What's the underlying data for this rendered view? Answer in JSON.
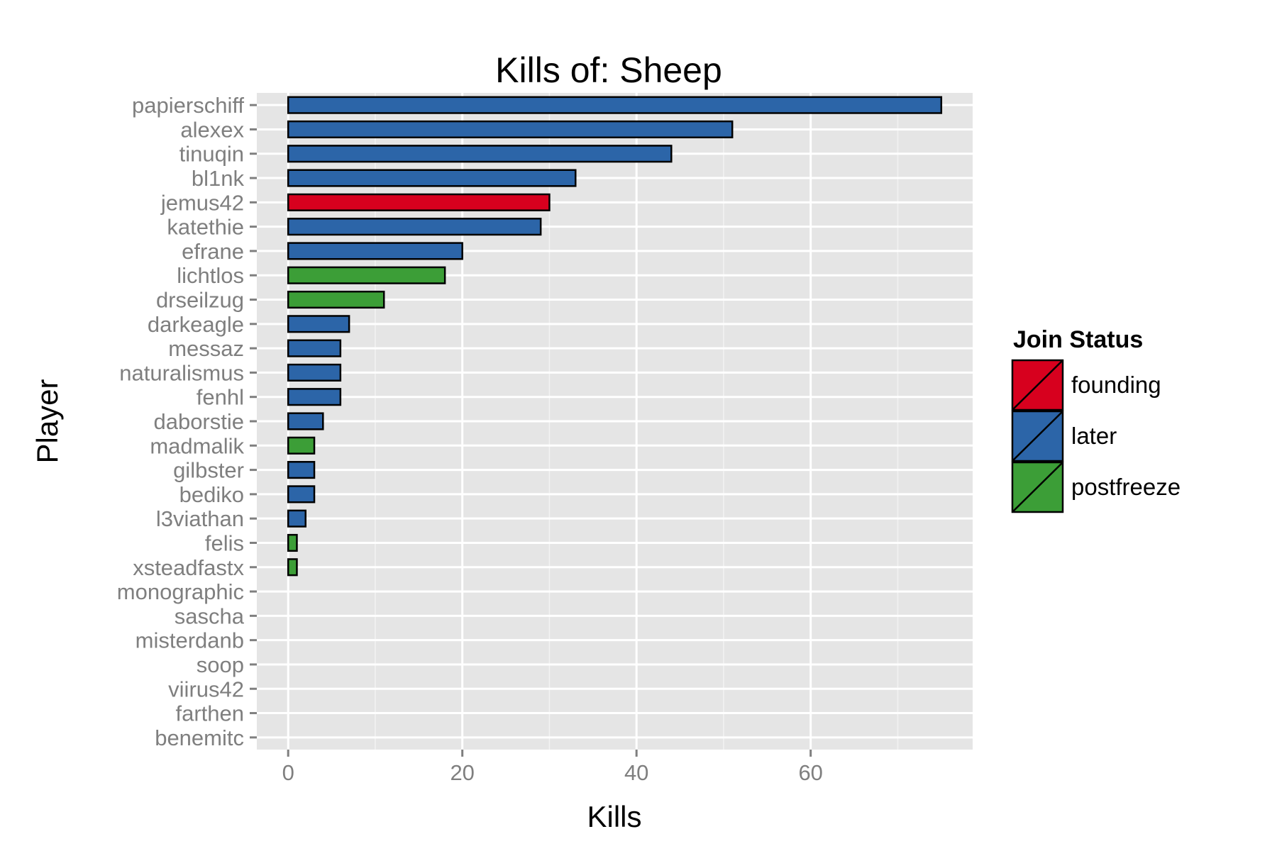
{
  "chart_data": {
    "type": "bar",
    "orientation": "horizontal",
    "title": "Kills of: Sheep",
    "xlabel": "Kills",
    "ylabel": "Player",
    "xlim": [
      -3.6,
      78.6
    ],
    "xticks": [
      0,
      20,
      40,
      60
    ],
    "grid": true,
    "legend": {
      "title": "Join Status",
      "placement": "right",
      "entries": [
        {
          "label": "founding",
          "color": "#D7001E"
        },
        {
          "label": "later",
          "color": "#2C65A8"
        },
        {
          "label": "postfreeze",
          "color": "#3C9E37"
        }
      ]
    },
    "categories": [
      "papierschiff",
      "alexex",
      "tinuqin",
      "bl1nk",
      "jemus42",
      "katethie",
      "efrane",
      "lichtlos",
      "drseilzug",
      "darkeagle",
      "messaz",
      "naturalismus",
      "fenhl",
      "daborstie",
      "madmalik",
      "gilbster",
      "bediko",
      "l3viathan",
      "felis",
      "xsteadfastx",
      "monographic",
      "sascha",
      "misterdanb",
      "soop",
      "viirus42",
      "farthen",
      "benemitc"
    ],
    "values": [
      75,
      51,
      44,
      33,
      30,
      29,
      20,
      18,
      11,
      7,
      6,
      6,
      6,
      4,
      3,
      3,
      3,
      2,
      1,
      1,
      0,
      0,
      0,
      0,
      0,
      0,
      0
    ],
    "status": [
      "later",
      "later",
      "later",
      "later",
      "founding",
      "later",
      "later",
      "postfreeze",
      "postfreeze",
      "later",
      "later",
      "later",
      "later",
      "later",
      "postfreeze",
      "later",
      "later",
      "later",
      "postfreeze",
      "postfreeze",
      "later",
      "later",
      "later",
      "later",
      "later",
      "later",
      "later"
    ]
  }
}
